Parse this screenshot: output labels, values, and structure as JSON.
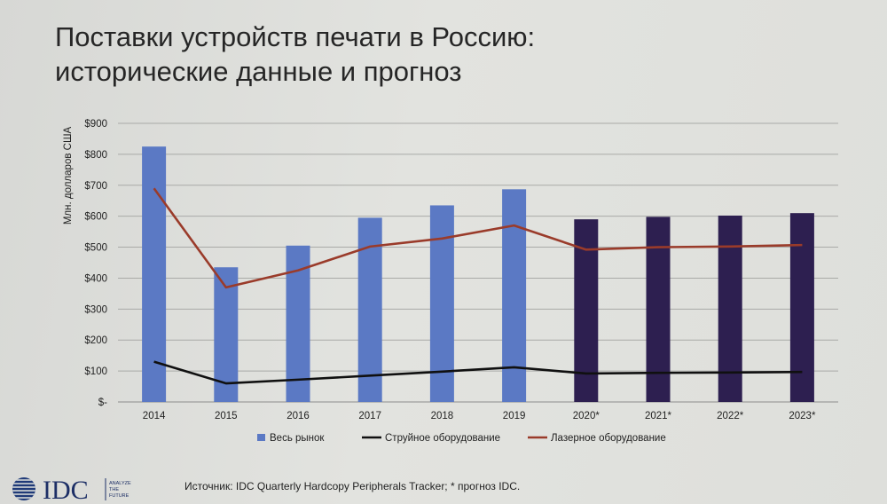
{
  "slide": {
    "title_line1": "Поставки устройств печати в Россию:",
    "title_line2": "исторические данные и прогноз",
    "source": "Источник: IDC Quarterly Hardcopy Peripherals Tracker; * прогноз IDC.",
    "logo_text": "IDC",
    "logo_tagline": [
      "ANALYZE",
      "THE",
      "FUTURE"
    ]
  },
  "chart_data": {
    "type": "bar",
    "title": "",
    "xlabel": "",
    "ylabel": "Млн. долларов США",
    "categories": [
      "2014",
      "2015",
      "2016",
      "2017",
      "2018",
      "2019",
      "2020*",
      "2021*",
      "2022*",
      "2023*"
    ],
    "y_ticks": [
      "$-",
      "$100",
      "$200",
      "$300",
      "$400",
      "$500",
      "$600",
      "$700",
      "$800",
      "$900"
    ],
    "ylim": [
      0,
      900
    ],
    "grid": true,
    "legend_position": "bottom",
    "series": [
      {
        "name": "Весь рынок",
        "kind": "bar",
        "values": [
          825,
          435,
          505,
          595,
          635,
          687,
          590,
          598,
          602,
          610
        ],
        "color": "#5b79c4",
        "forecast_color": "#2d1f50"
      },
      {
        "name": "Струйное оборудование",
        "kind": "line",
        "values": [
          130,
          60,
          72,
          85,
          98,
          112,
          92,
          94,
          95,
          97
        ],
        "color": "#101010"
      },
      {
        "name": "Лазерное оборудование",
        "kind": "line",
        "values": [
          690,
          370,
          425,
          502,
          528,
          570,
          492,
          500,
          502,
          507
        ],
        "color": "#9a3b2a"
      }
    ]
  }
}
